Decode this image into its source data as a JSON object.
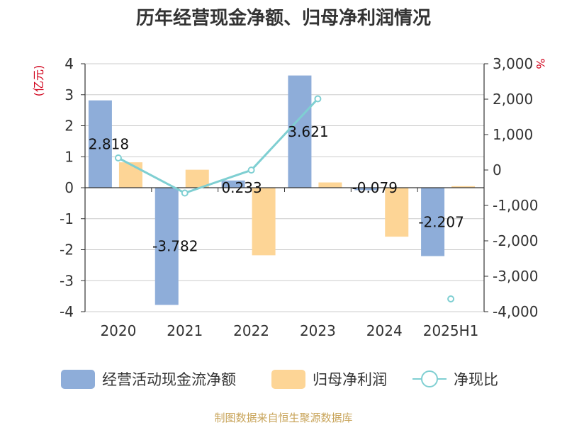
{
  "chart_data": {
    "type": "bar",
    "title": "历年经营现金净额、归母净利润情况",
    "categories": [
      "2020",
      "2021",
      "2022",
      "2023",
      "2024",
      "2025H1"
    ],
    "series": [
      {
        "name": "经营活动现金流净额",
        "kind": "bar",
        "axis": "left",
        "color": "#8eadd9",
        "values": [
          2.818,
          -3.782,
          0.233,
          3.621,
          -0.079,
          -2.207
        ]
      },
      {
        "name": "归母净利润",
        "kind": "bar",
        "axis": "left",
        "color": "#fdd596",
        "values": [
          0.82,
          0.58,
          -2.18,
          0.17,
          -1.58,
          0.05
        ]
      },
      {
        "name": "净现比",
        "kind": "line",
        "axis": "right",
        "color": "#7fcfd2",
        "values": [
          340,
          -650,
          -3,
          2010,
          null,
          -3640
        ]
      }
    ],
    "data_labels": [
      "2.818",
      "-3.782",
      "0.233",
      "3.621",
      "-0.079",
      "-2.207"
    ],
    "left_axis": {
      "unit": "(亿元)",
      "min": -4,
      "max": 4,
      "ticks": [
        "4",
        "3",
        "2",
        "1",
        "0",
        "-1",
        "-2",
        "-3",
        "-4"
      ]
    },
    "right_axis": {
      "unit": "%",
      "min": -4000,
      "max": 3000,
      "ticks": [
        "3,000",
        "2,000",
        "1,000",
        "0",
        "-1,000",
        "-2,000",
        "-3,000",
        "-4,000"
      ]
    },
    "grid": true,
    "legend_position": "bottom"
  },
  "source": "制图数据来自恒生聚源数据库",
  "colors": {
    "unit": "#d0021b",
    "source": "#c8a45a",
    "axis": "#333333",
    "grid": "#cccccc"
  }
}
